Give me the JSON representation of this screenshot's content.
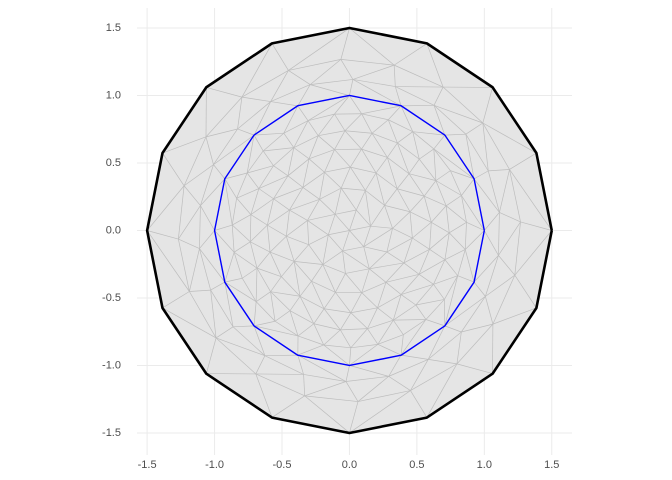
{
  "chart_data": {
    "type": "polygon",
    "xlim": [
      -1.575,
      1.65
    ],
    "ylim": [
      -1.663,
      1.648
    ],
    "xticks": [
      -1.5,
      {
        "value": -1,
        "label": "-1.0"
      },
      -0.5,
      {
        "value": 0,
        "label": "0.0"
      },
      0.5,
      {
        "value": 1,
        "label": "1.0"
      },
      1.5
    ],
    "yticks": [
      -1.5,
      {
        "value": -1,
        "label": "-1.0"
      },
      -0.5,
      {
        "value": 0,
        "label": "0.0"
      },
      0.5,
      {
        "value": 1,
        "label": "1.0"
      },
      1.5
    ],
    "grid": true,
    "series": [
      {
        "color": "#000000",
        "fill": "#e5e5e5",
        "x": [
          1.5,
          1.386,
          1.061,
          0.574,
          0,
          -0.574,
          -1.061,
          -1.386,
          -1.5,
          -1.386,
          -1.061,
          -0.574,
          0,
          0.574,
          1.061,
          1.386,
          1.5
        ],
        "values": [
          0,
          0.574,
          1.061,
          1.386,
          1.5,
          1.386,
          1.061,
          0.574,
          0,
          -0.574,
          -1.061,
          -1.386,
          -1.5,
          -1.386,
          -1.061,
          -0.574,
          0
        ]
      },
      {
        "color": "#0000ff",
        "x": [
          1,
          0.924,
          0.707,
          0.383,
          0,
          -0.383,
          -0.707,
          -0.924,
          -1,
          -0.924,
          -0.707,
          -0.383,
          0,
          0.383,
          0.707,
          0.924,
          1
        ],
        "values": [
          0,
          0.383,
          0.707,
          0.924,
          1,
          0.924,
          0.707,
          0.383,
          0,
          -0.383,
          -0.707,
          -0.924,
          -1,
          -0.924,
          -0.707,
          -0.383,
          0
        ]
      }
    ]
  }
}
